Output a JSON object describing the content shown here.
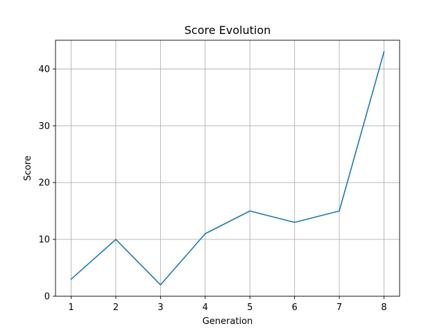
{
  "chart_data": {
    "type": "line",
    "title": "Score Evolution",
    "xlabel": "Generation",
    "ylabel": "Score",
    "x": [
      1,
      2,
      3,
      4,
      5,
      6,
      7,
      8
    ],
    "series": [
      {
        "values": [
          3,
          10,
          2,
          11,
          15,
          13,
          15,
          43
        ]
      }
    ],
    "xticks": [
      1,
      2,
      3,
      4,
      5,
      6,
      7,
      8
    ],
    "yticks": [
      0,
      10,
      20,
      30,
      40
    ],
    "xlim": [
      0.65,
      8.35
    ],
    "ylim": [
      0,
      45.05
    ],
    "grid": true,
    "line_color": "#1f77b4"
  }
}
